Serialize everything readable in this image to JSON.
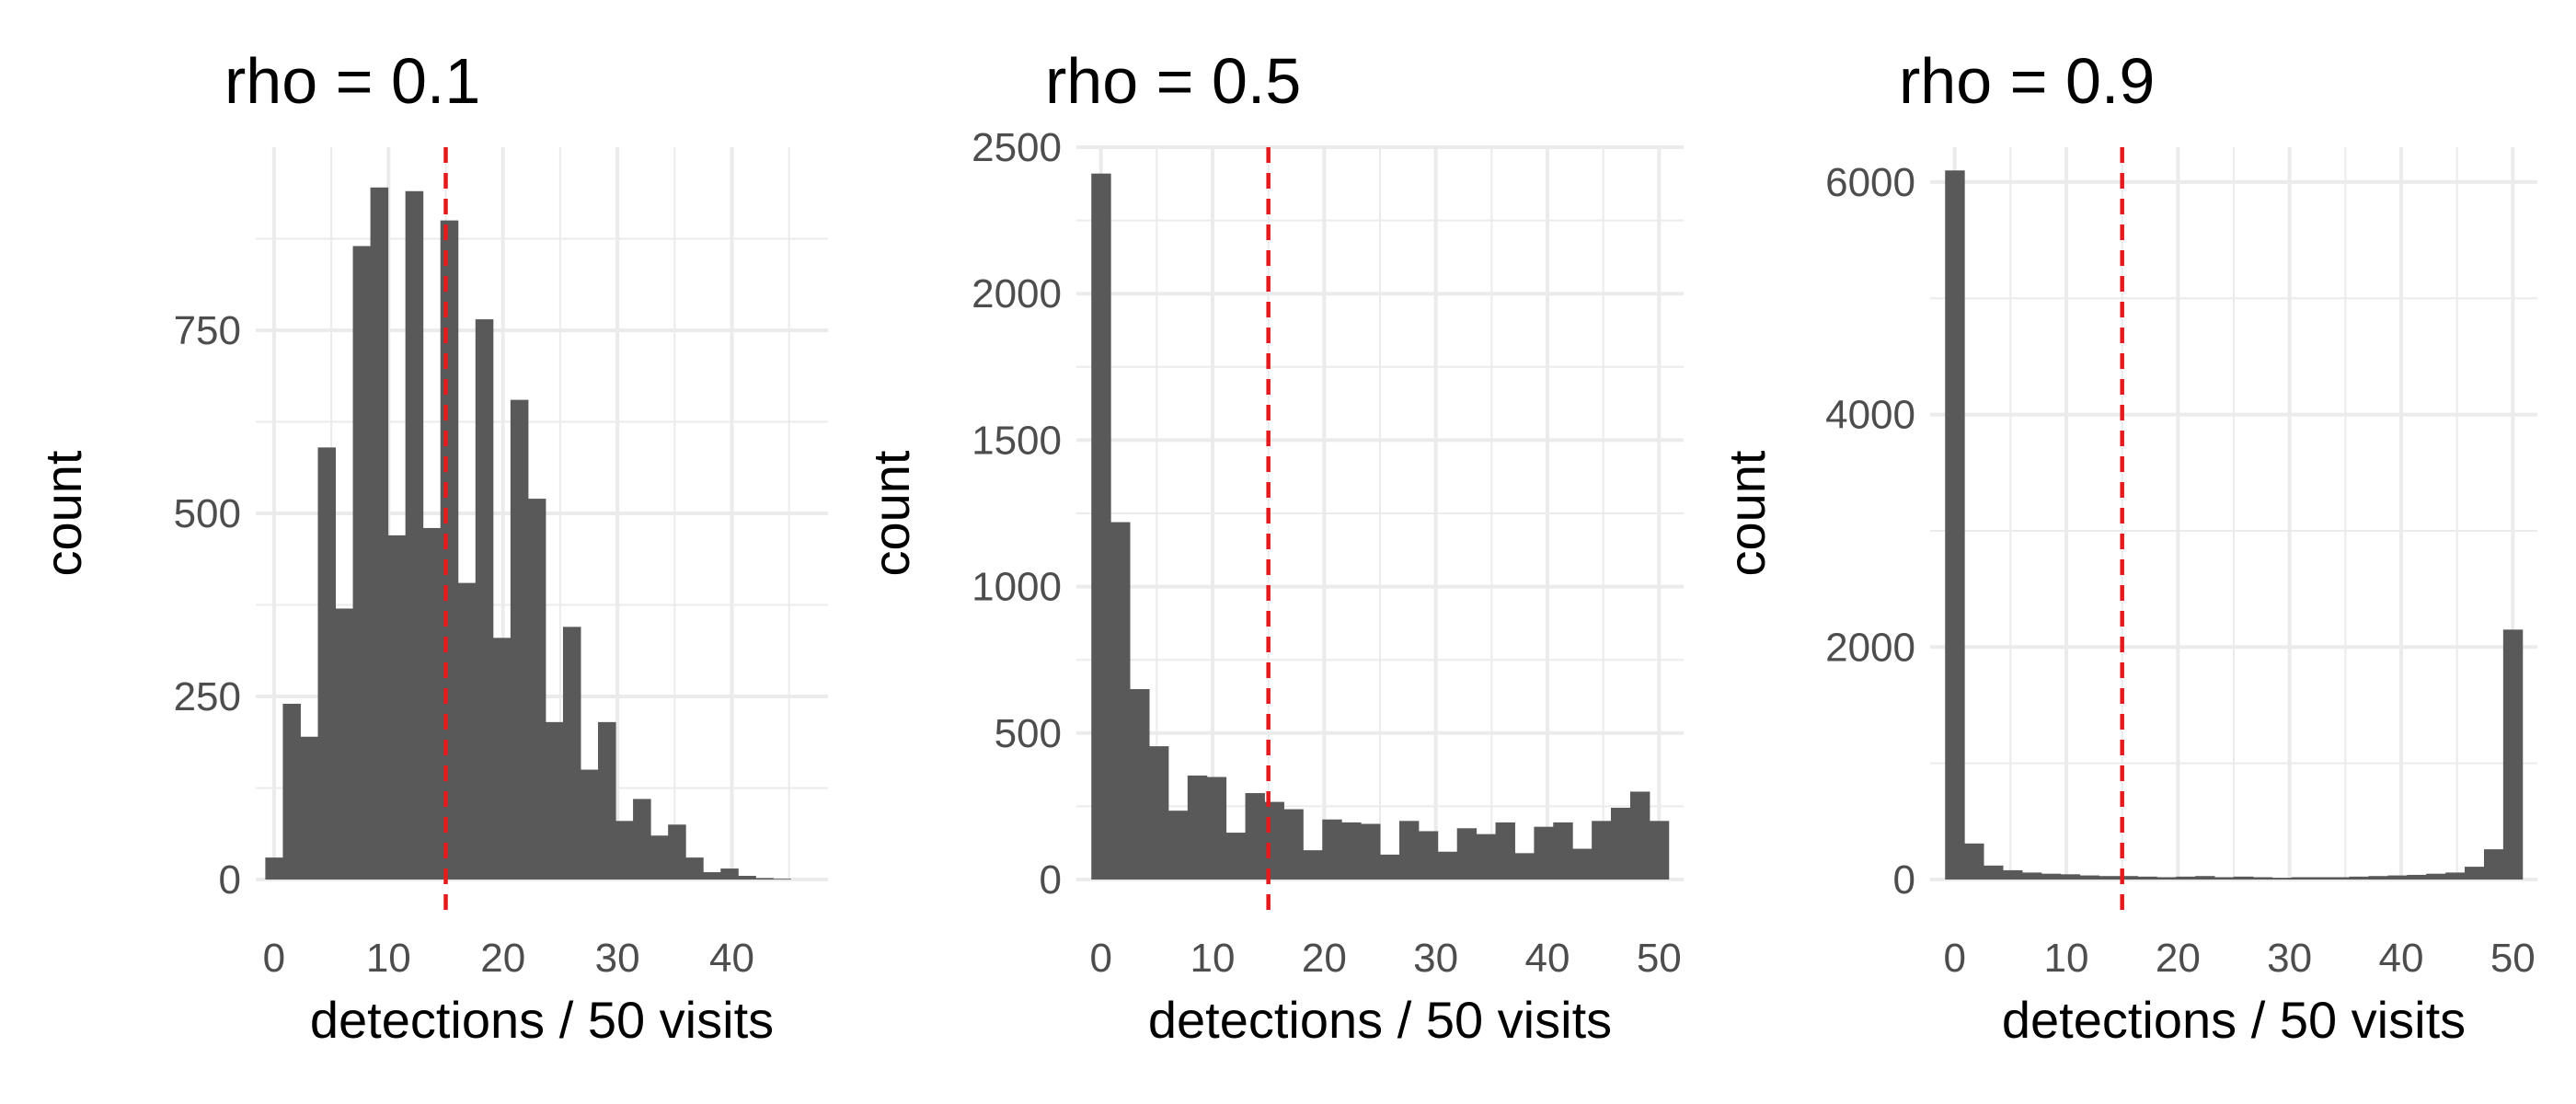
{
  "chart_data": [
    {
      "type": "bar",
      "title": "rho = 0.1",
      "xlabel": "detections / 50 visits",
      "ylabel": "count",
      "xlim": [
        -1.6,
        48.4
      ],
      "ylim": [
        0,
        1000
      ],
      "xticks": [
        0,
        10,
        20,
        30,
        40
      ],
      "yticks": [
        0,
        250,
        500,
        750
      ],
      "binwidth": 1.53,
      "bin_centers": [
        0,
        1.53,
        3.06,
        4.59,
        6.12,
        7.65,
        9.18,
        10.71,
        12.24,
        13.77,
        15.3,
        16.83,
        18.36,
        19.89,
        21.42,
        22.95,
        24.48,
        26.01,
        27.54,
        29.07,
        30.6,
        32.13,
        33.66,
        35.19,
        36.72,
        38.25,
        39.78,
        41.31,
        42.84,
        44.37
      ],
      "values": [
        30,
        240,
        195,
        590,
        370,
        865,
        945,
        470,
        940,
        480,
        900,
        405,
        765,
        330,
        655,
        520,
        215,
        345,
        150,
        215,
        80,
        110,
        60,
        75,
        30,
        10,
        15,
        5,
        2,
        1
      ],
      "reference_line": 15,
      "grid": true
    },
    {
      "type": "bar",
      "title": "rho = 0.5",
      "xlabel": "detections / 50 visits",
      "ylabel": "count",
      "xlim": [
        -2.2,
        52.2
      ],
      "ylim": [
        0,
        2500
      ],
      "xticks": [
        0,
        10,
        20,
        30,
        40,
        50
      ],
      "yticks": [
        0,
        500,
        1000,
        1500,
        2000,
        2500
      ],
      "binwidth": 1.724,
      "bin_centers": [
        0,
        1.72,
        3.45,
        5.17,
        6.9,
        8.62,
        10.34,
        12.07,
        13.79,
        15.52,
        17.24,
        18.97,
        20.69,
        22.41,
        24.14,
        25.86,
        27.59,
        29.31,
        31.03,
        32.76,
        34.48,
        36.21,
        37.93,
        39.66,
        41.38,
        43.1,
        44.83,
        46.55,
        48.28,
        50
      ],
      "values": [
        2410,
        1220,
        650,
        455,
        235,
        355,
        350,
        160,
        295,
        265,
        240,
        100,
        205,
        195,
        190,
        85,
        200,
        165,
        95,
        175,
        155,
        195,
        90,
        180,
        195,
        105,
        200,
        245,
        300,
        200
      ],
      "reference_line": 15,
      "grid": true
    },
    {
      "type": "bar",
      "title": "rho = 0.9",
      "xlabel": "detections / 50 visits",
      "ylabel": "count",
      "xlim": [
        -2.2,
        52.2
      ],
      "ylim": [
        0,
        6300
      ],
      "xticks": [
        0,
        10,
        20,
        30,
        40,
        50
      ],
      "yticks": [
        0,
        2000,
        4000,
        6000
      ],
      "binwidth": 1.724,
      "bin_centers": [
        0,
        1.72,
        3.45,
        5.17,
        6.9,
        8.62,
        10.34,
        12.07,
        13.79,
        15.52,
        17.24,
        18.97,
        20.69,
        22.41,
        24.14,
        25.86,
        27.59,
        29.31,
        31.03,
        32.76,
        34.48,
        36.21,
        37.93,
        39.66,
        41.38,
        43.1,
        44.83,
        46.55,
        48.28,
        50
      ],
      "values": [
        6100,
        310,
        120,
        80,
        60,
        50,
        45,
        35,
        30,
        30,
        25,
        20,
        25,
        30,
        20,
        25,
        20,
        15,
        20,
        20,
        20,
        25,
        30,
        35,
        40,
        50,
        60,
        110,
        260,
        2150
      ],
      "reference_line": 15,
      "grid": true
    }
  ]
}
